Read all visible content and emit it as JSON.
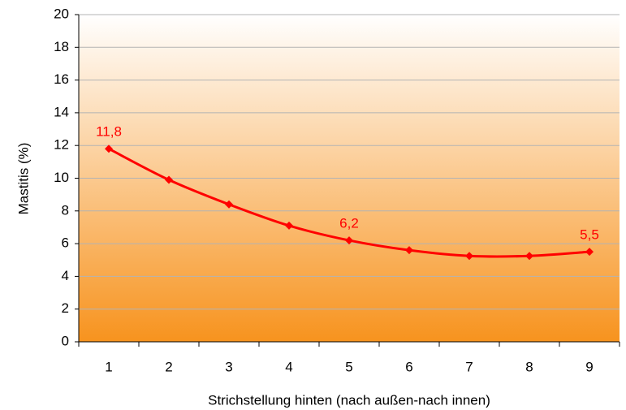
{
  "chart_data": {
    "type": "line",
    "x_label": "Strichstellung hinten (nach außen-nach innen)",
    "y_label": "Mastitis (%)",
    "categories": [
      "1",
      "2",
      "3",
      "4",
      "5",
      "6",
      "7",
      "8",
      "9"
    ],
    "series": [
      {
        "name": "Mastitis",
        "color": "#ff0000",
        "values": [
          11.8,
          9.9,
          8.4,
          7.1,
          6.2,
          5.6,
          5.25,
          5.25,
          5.5
        ],
        "value_labels": [
          "11,8",
          null,
          null,
          null,
          "6,2",
          null,
          null,
          null,
          "5,5"
        ]
      }
    ],
    "ylim": [
      0,
      20
    ],
    "yticks": [
      0,
      2,
      4,
      6,
      8,
      10,
      12,
      14,
      16,
      18,
      20
    ],
    "grid": true
  }
}
